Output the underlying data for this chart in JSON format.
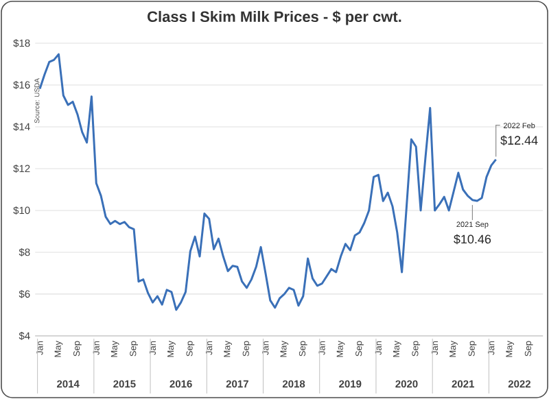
{
  "chart_data": {
    "type": "line",
    "title": "Class I Skim Milk Prices - $ per cwt.",
    "x": [
      "2014-01",
      "2014-02",
      "2014-03",
      "2014-04",
      "2014-05",
      "2014-06",
      "2014-07",
      "2014-08",
      "2014-09",
      "2014-10",
      "2014-11",
      "2014-12",
      "2015-01",
      "2015-02",
      "2015-03",
      "2015-04",
      "2015-05",
      "2015-06",
      "2015-07",
      "2015-08",
      "2015-09",
      "2015-10",
      "2015-11",
      "2015-12",
      "2016-01",
      "2016-02",
      "2016-03",
      "2016-04",
      "2016-05",
      "2016-06",
      "2016-07",
      "2016-08",
      "2016-09",
      "2016-10",
      "2016-11",
      "2016-12",
      "2017-01",
      "2017-02",
      "2017-03",
      "2017-04",
      "2017-05",
      "2017-06",
      "2017-07",
      "2017-08",
      "2017-09",
      "2017-10",
      "2017-11",
      "2017-12",
      "2018-01",
      "2018-02",
      "2018-03",
      "2018-04",
      "2018-05",
      "2018-06",
      "2018-07",
      "2018-08",
      "2018-09",
      "2018-10",
      "2018-11",
      "2018-12",
      "2019-01",
      "2019-02",
      "2019-03",
      "2019-04",
      "2019-05",
      "2019-06",
      "2019-07",
      "2019-08",
      "2019-09",
      "2019-10",
      "2019-11",
      "2019-12",
      "2020-01",
      "2020-02",
      "2020-03",
      "2020-04",
      "2020-05",
      "2020-06",
      "2020-07",
      "2020-08",
      "2020-09",
      "2020-10",
      "2020-11",
      "2020-12",
      "2021-01",
      "2021-02",
      "2021-03",
      "2021-04",
      "2021-05",
      "2021-06",
      "2021-07",
      "2021-08",
      "2021-09",
      "2021-10",
      "2021-11",
      "2021-12",
      "2022-01",
      "2022-02"
    ],
    "series": [
      {
        "color": "#3a70b8",
        "values": [
          15.82,
          16.5,
          17.1,
          17.2,
          17.47,
          15.5,
          15.05,
          15.2,
          14.6,
          13.75,
          13.25,
          15.45,
          11.3,
          10.7,
          9.7,
          9.35,
          9.5,
          9.35,
          9.45,
          9.2,
          9.1,
          6.6,
          6.7,
          6.05,
          5.6,
          5.9,
          5.5,
          6.2,
          6.1,
          5.25,
          5.6,
          6.1,
          8.05,
          8.75,
          7.8,
          9.85,
          9.6,
          8.15,
          8.65,
          7.8,
          7.1,
          7.35,
          7.3,
          6.6,
          6.3,
          6.7,
          7.3,
          8.25,
          7.0,
          5.7,
          5.35,
          5.8,
          6.0,
          6.3,
          6.2,
          5.45,
          5.9,
          7.7,
          6.75,
          6.4,
          6.5,
          6.85,
          7.2,
          7.05,
          7.8,
          8.4,
          8.1,
          8.8,
          8.95,
          9.4,
          10.0,
          11.6,
          11.7,
          10.45,
          10.85,
          10.2,
          8.95,
          7.05,
          10.2,
          13.4,
          13.05,
          10.0,
          12.5,
          14.9,
          10.0,
          10.3,
          10.65,
          10.0,
          10.9,
          11.8,
          11.0,
          10.7,
          10.5,
          10.46,
          10.6,
          11.6,
          12.15,
          12.44
        ]
      }
    ],
    "xlim": [
      "2013-12",
      "2022-12"
    ],
    "xticks": [
      {
        "value": "2014-01",
        "label": "Jan"
      },
      {
        "value": "2014-05",
        "label": "May"
      },
      {
        "value": "2014-09",
        "label": "Sep"
      },
      {
        "value": "2015-01",
        "label": "Jan"
      },
      {
        "value": "2015-05",
        "label": "May"
      },
      {
        "value": "2015-09",
        "label": "Sep"
      },
      {
        "value": "2016-01",
        "label": "Jan"
      },
      {
        "value": "2016-05",
        "label": "May"
      },
      {
        "value": "2016-09",
        "label": "Sep"
      },
      {
        "value": "2017-01",
        "label": "Jan"
      },
      {
        "value": "2017-05",
        "label": "May"
      },
      {
        "value": "2017-09",
        "label": "Sep"
      },
      {
        "value": "2018-01",
        "label": "Jan"
      },
      {
        "value": "2018-05",
        "label": "May"
      },
      {
        "value": "2018-09",
        "label": "Sep"
      },
      {
        "value": "2019-01",
        "label": "Jan"
      },
      {
        "value": "2019-05",
        "label": "May"
      },
      {
        "value": "2019-09",
        "label": "Sep"
      },
      {
        "value": "2020-01",
        "label": "Jan"
      },
      {
        "value": "2020-05",
        "label": "May"
      },
      {
        "value": "2020-09",
        "label": "Sep"
      },
      {
        "value": "2021-01",
        "label": "Jan"
      },
      {
        "value": "2021-05",
        "label": "May"
      },
      {
        "value": "2021-09",
        "label": "Sep"
      },
      {
        "value": "2022-01",
        "label": "Jan"
      },
      {
        "value": "2022-05",
        "label": "May"
      },
      {
        "value": "2022-09",
        "label": "Sep"
      }
    ],
    "ylim": [
      4,
      18
    ],
    "yticks": [
      {
        "value": 4,
        "label": "$4"
      },
      {
        "value": 6,
        "label": "$6"
      },
      {
        "value": 8,
        "label": "$8"
      },
      {
        "value": 10,
        "label": "$10"
      },
      {
        "value": 12,
        "label": "$12"
      },
      {
        "value": 14,
        "label": "$14"
      },
      {
        "value": 16,
        "label": "$16"
      },
      {
        "value": 18,
        "label": "$18"
      }
    ],
    "grid": "y",
    "annotations": [
      "Source: USDA",
      {
        "text": "2022 Feb",
        "x": "2022-02",
        "y": 12.44
      },
      {
        "text": "$12.44",
        "x": "2022-02",
        "y": 12.44
      },
      {
        "text": "2021 Sep",
        "x": "2021-09",
        "y": 10.46
      },
      {
        "text": "$10.46",
        "x": "2021-09",
        "y": 10.46
      },
      "2014",
      "2015",
      "2016",
      "2017",
      "2018",
      "2019",
      "2020",
      "2021",
      "2022"
    ]
  }
}
